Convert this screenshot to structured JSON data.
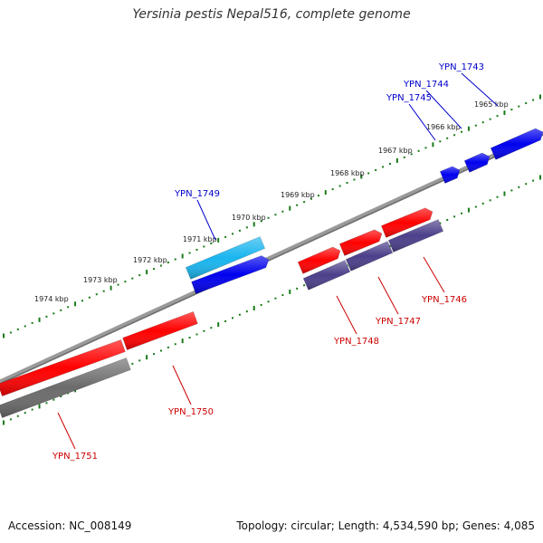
{
  "title": "Yersinia pestis Nepal516, complete genome",
  "accession_text": "Accession: NC_008149",
  "summary_text": "Topology: circular; Length: 4,534,590 bp; Genes: 4,085",
  "colors": {
    "backbone": "#8c8c8c",
    "tick": "#1a7a1a",
    "red": "#ff0000",
    "blue": "#0000ee",
    "cyan": "#19b5ef",
    "purple": "#4b3f8a",
    "gray": "#666666",
    "label_blue": "#0000cc",
    "label_red": "#cc0000"
  },
  "kbp_labels": [
    "1965 kbp",
    "1966 kbp",
    "1967 kbp",
    "1968 kbp",
    "1969 kbp",
    "1970 kbp",
    "1971 kbp",
    "1972 kbp",
    "1973 kbp",
    "1974 kbp"
  ],
  "genes": [
    {
      "id": "YPN_1743",
      "color": "blue",
      "label_color": "label_blue"
    },
    {
      "id": "YPN_1744",
      "color": "blue",
      "label_color": "label_blue"
    },
    {
      "id": "YPN_1745",
      "color": "blue",
      "label_color": "label_blue"
    },
    {
      "id": "YPN_1746",
      "color": "red",
      "label_color": "label_red"
    },
    {
      "id": "YPN_1747",
      "color": "red",
      "label_color": "label_red"
    },
    {
      "id": "YPN_1748",
      "color": "red",
      "label_color": "label_red"
    },
    {
      "id": "YPN_1749",
      "color": "cyan",
      "label_color": "label_blue"
    },
    {
      "id": "YPN_1750",
      "color": "red",
      "label_color": "label_red"
    },
    {
      "id": "YPN_1751",
      "color": "red",
      "label_color": "label_red"
    }
  ]
}
